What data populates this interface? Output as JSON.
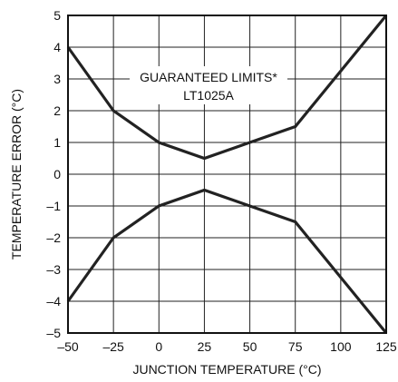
{
  "chart_data": {
    "type": "line",
    "xlabel": "JUNCTION TEMPERATURE (°C)",
    "ylabel": "TEMPERATURE ERROR (°C)",
    "xlim": [
      -50,
      125
    ],
    "ylim": [
      -5,
      5
    ],
    "x_ticks": [
      -50,
      -25,
      0,
      25,
      50,
      75,
      100,
      125
    ],
    "x_tick_labels": [
      "–50",
      "–25",
      "0",
      "25",
      "50",
      "75",
      "100",
      "125"
    ],
    "y_ticks": [
      -5,
      -4,
      -3,
      -2,
      -1,
      0,
      1,
      2,
      3,
      4,
      5
    ],
    "y_tick_labels": [
      "–5",
      "–4",
      "–3",
      "–2",
      "–1",
      "0",
      "1",
      "2",
      "3",
      "4",
      "5"
    ],
    "grid": true,
    "annotation": [
      "GUARANTEED LIMITS*",
      "LT1025A"
    ],
    "series": [
      {
        "x": [
          -50,
          -25,
          0,
          25,
          50,
          75,
          125
        ],
        "y": [
          4,
          2,
          1,
          0.5,
          1,
          1.5,
          5
        ]
      },
      {
        "x": [
          -50,
          -25,
          0,
          25,
          50,
          75,
          125
        ],
        "y": [
          -4,
          -2,
          -1,
          -0.5,
          -1,
          -1.5,
          -5
        ]
      }
    ],
    "line_color": "#222222"
  }
}
